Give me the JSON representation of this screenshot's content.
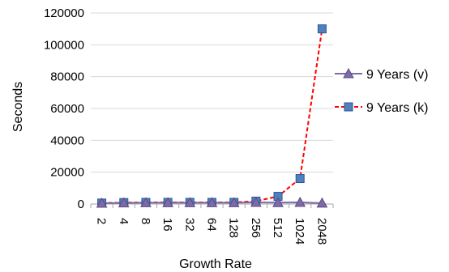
{
  "chart_data": {
    "type": "line",
    "title": "",
    "xlabel": "Growth Rate",
    "ylabel": "Seconds",
    "categories": [
      "2",
      "4",
      "8",
      "16",
      "32",
      "64",
      "128",
      "256",
      "512",
      "1024",
      "2048"
    ],
    "ylim": [
      0,
      120000
    ],
    "yticks": [
      "0",
      "20000",
      "40000",
      "60000",
      "80000",
      "100000",
      "120000"
    ],
    "grid": true,
    "legend_position": "right",
    "series": [
      {
        "name": "9 Years (v)",
        "values": [
          500,
          700,
          800,
          800,
          800,
          800,
          800,
          1000,
          900,
          1000,
          600
        ],
        "color": "#7f6aa8",
        "marker": "triangle",
        "line_style": "solid"
      },
      {
        "name": "9 Years (k)",
        "values": [
          600,
          900,
          1000,
          1000,
          1000,
          1000,
          1000,
          1800,
          4800,
          16000,
          110000
        ],
        "color": "#ff0000",
        "marker_fill": "#4f81bd",
        "marker": "square",
        "line_style": "dashed"
      }
    ]
  }
}
